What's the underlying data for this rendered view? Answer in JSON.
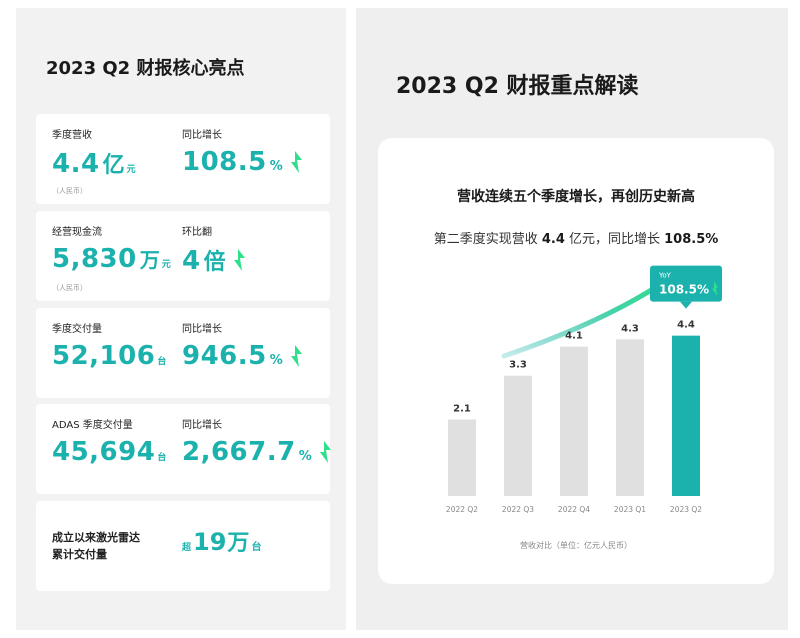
{
  "left": {
    "title": "2023 Q2 财报核心亮点",
    "cards": [
      {
        "a": {
          "label": "季度营收",
          "value": "4.4",
          "unit": "亿",
          "unit2": "元",
          "sub": "（人民币）"
        },
        "b": {
          "label": "同比增长",
          "value": "108.5",
          "unit": "%"
        }
      },
      {
        "a": {
          "label": "经营现金流",
          "value": "5,830",
          "unit": "万",
          "unit2": "元",
          "sub": "（人民币）"
        },
        "b": {
          "label": "环比翻",
          "value": "4",
          "unit": "倍"
        }
      },
      {
        "a": {
          "label": "季度交付量",
          "value": "52,106",
          "unit2": "台"
        },
        "b": {
          "label": "同比增长",
          "value": "946.5",
          "unit": "%"
        }
      },
      {
        "a": {
          "label": "ADAS 季度交付量",
          "value": "45,694",
          "unit2": "台"
        },
        "b": {
          "label": "同比增长",
          "value": "2,667.7",
          "unit": "%"
        }
      }
    ],
    "card5": {
      "line1": "成立以来激光雷达",
      "line2": "累计交付量",
      "prefix": "超",
      "value": "19",
      "unit": "万",
      "unit2": "台"
    }
  },
  "right": {
    "title": "2023 Q2 财报重点解读",
    "chart_title": "营收连续五个季度增长，再创历史新高",
    "sub_prefix": "第二季度实现营收 ",
    "sub_value1": "4.4",
    "sub_mid": " 亿元，同比增长 ",
    "sub_value2": "108.5%"
  },
  "colors": {
    "accent": "#1bb2ad",
    "arrow_green": "#2ee08a",
    "bar_gray": "#e0e0e0"
  },
  "chart_data": {
    "type": "bar",
    "categories": [
      "2022 Q2",
      "2022 Q3",
      "2022 Q4",
      "2023 Q1",
      "2023 Q2"
    ],
    "values": [
      2.1,
      3.3,
      4.1,
      4.3,
      4.4
    ],
    "value_labels": [
      "2.1",
      "3.3",
      "4.1",
      "4.3",
      "4.4"
    ],
    "highlight_index": 4,
    "callout": {
      "label": "YoY",
      "value": "108.5%"
    },
    "caption": "营收对比（单位：亿元人民币）",
    "title": "",
    "xlabel": "",
    "ylabel": "",
    "ylim": [
      0,
      5.9
    ]
  }
}
